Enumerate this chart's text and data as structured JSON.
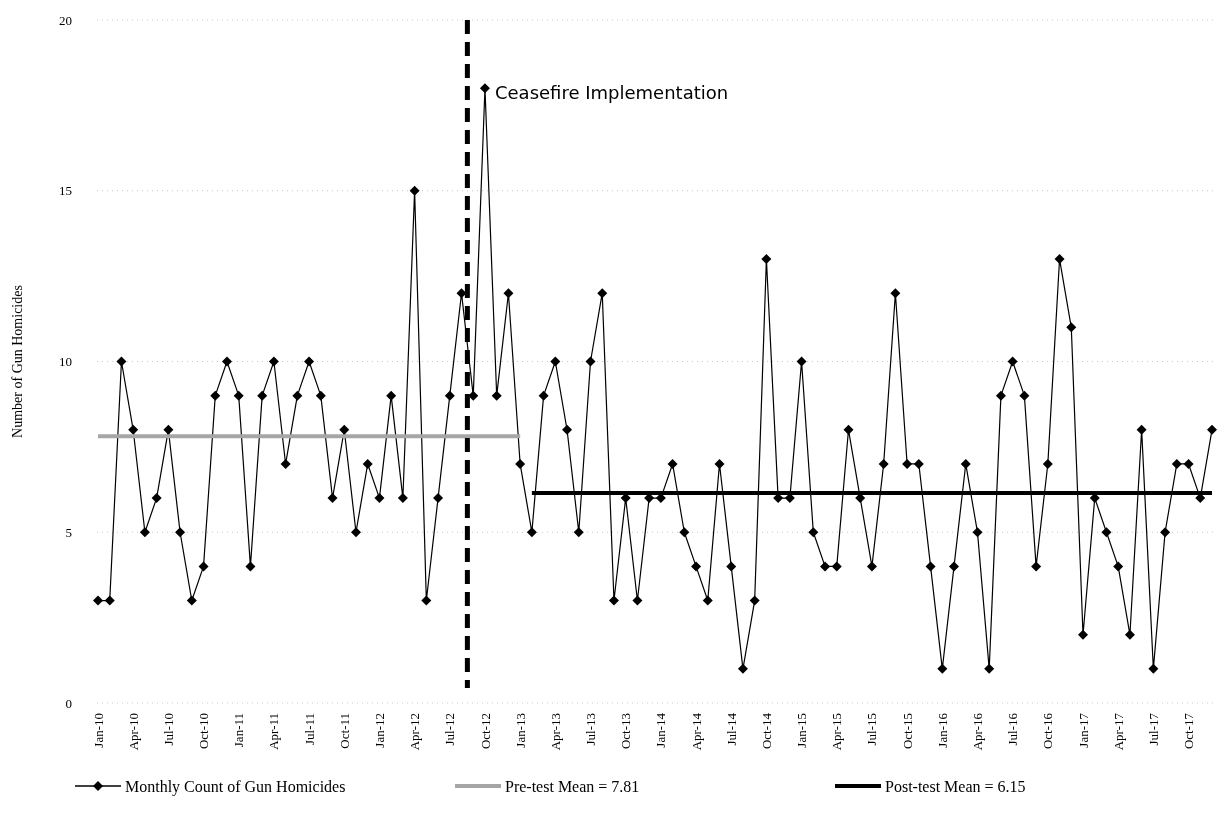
{
  "chart_data": {
    "type": "line",
    "ylabel": "Number of Gun Homicides",
    "categories": [
      "Jan-10",
      null,
      null,
      "Apr-10",
      null,
      null,
      "Jul-10",
      null,
      null,
      "Oct-10",
      null,
      null,
      "Jan-11",
      null,
      null,
      "Apr-11",
      null,
      null,
      "Jul-11",
      null,
      null,
      "Oct-11",
      null,
      null,
      "Jan-12",
      null,
      null,
      "Apr-12",
      null,
      null,
      "Jul-12",
      null,
      null,
      "Oct-12",
      null,
      null,
      "Jan-13",
      null,
      null,
      "Apr-13",
      null,
      null,
      "Jul-13",
      null,
      null,
      "Oct-13",
      null,
      null,
      "Jan-14",
      null,
      null,
      "Apr-14",
      null,
      null,
      "Jul-14",
      null,
      null,
      "Oct-14",
      null,
      null,
      "Jan-15",
      null,
      null,
      "Apr-15",
      null,
      null,
      "Jul-15",
      null,
      null,
      "Oct-15",
      null,
      null,
      "Jan-16",
      null,
      null,
      "Apr-16",
      null,
      null,
      "Jul-16",
      null,
      null,
      "Oct-16",
      null,
      null,
      "Jan-17",
      null,
      null,
      "Apr-17",
      null,
      null,
      "Jul-17",
      null,
      null,
      "Oct-17",
      null,
      null
    ],
    "series": [
      {
        "name": "Monthly Count of Gun Homicides",
        "color": "#000000",
        "marker": "diamond",
        "values": [
          3,
          3,
          10,
          8,
          5,
          6,
          8,
          5,
          3,
          4,
          9,
          10,
          9,
          4,
          9,
          10,
          7,
          9,
          10,
          9,
          6,
          8,
          5,
          7,
          6,
          9,
          6,
          15,
          3,
          6,
          9,
          12,
          9,
          18,
          9,
          12,
          7,
          5,
          9,
          10,
          8,
          5,
          10,
          12,
          3,
          6,
          3,
          6,
          6,
          7,
          5,
          4,
          3,
          7,
          4,
          1,
          3,
          13,
          6,
          6,
          10,
          5,
          4,
          4,
          8,
          6,
          4,
          7,
          12,
          7,
          7,
          4,
          1,
          4,
          7,
          5,
          1,
          9,
          10,
          9,
          4,
          7,
          13,
          11,
          2,
          6,
          5,
          4,
          2,
          8,
          1,
          5,
          7,
          7,
          6,
          8
        ]
      },
      {
        "name": "Pre-test Mean = 7.81",
        "color": "#a6a6a6",
        "marker": "none",
        "values": [
          7.81,
          7.81,
          7.81,
          7.81,
          7.81,
          7.81,
          7.81,
          7.81,
          7.81,
          7.81,
          7.81,
          7.81,
          7.81,
          7.81,
          7.81,
          7.81,
          7.81,
          7.81,
          7.81,
          7.81,
          7.81,
          7.81,
          7.81,
          7.81,
          7.81,
          7.81,
          7.81,
          7.81,
          7.81,
          7.81,
          7.81,
          7.81,
          7.81,
          7.81,
          7.81,
          7.81,
          7.81,
          null,
          null,
          null,
          null,
          null,
          null,
          null,
          null,
          null,
          null,
          null,
          null,
          null,
          null,
          null,
          null,
          null,
          null,
          null,
          null,
          null,
          null,
          null,
          null,
          null,
          null,
          null,
          null,
          null,
          null,
          null,
          null,
          null,
          null,
          null,
          null,
          null,
          null,
          null,
          null,
          null,
          null,
          null,
          null,
          null,
          null,
          null,
          null,
          null,
          null,
          null,
          null,
          null,
          null,
          null,
          null,
          null,
          null,
          null
        ]
      },
      {
        "name": "Post-test Mean = 6.15",
        "color": "#000000",
        "marker": "none",
        "values": [
          null,
          null,
          null,
          null,
          null,
          null,
          null,
          null,
          null,
          null,
          null,
          null,
          null,
          null,
          null,
          null,
          null,
          null,
          null,
          null,
          null,
          null,
          null,
          null,
          null,
          null,
          null,
          null,
          null,
          null,
          null,
          null,
          null,
          null,
          null,
          null,
          null,
          6.15,
          6.15,
          6.15,
          6.15,
          6.15,
          6.15,
          6.15,
          6.15,
          6.15,
          6.15,
          6.15,
          6.15,
          6.15,
          6.15,
          6.15,
          6.15,
          6.15,
          6.15,
          6.15,
          6.15,
          6.15,
          6.15,
          6.15,
          6.15,
          6.15,
          6.15,
          6.15,
          6.15,
          6.15,
          6.15,
          6.15,
          6.15,
          6.15,
          6.15,
          6.15,
          6.15,
          6.15,
          6.15,
          6.15,
          6.15,
          6.15,
          6.15,
          6.15,
          6.15,
          6.15,
          6.15,
          6.15,
          6.15,
          6.15,
          6.15,
          6.15,
          6.15,
          6.15,
          6.15,
          6.15,
          6.15,
          6.15,
          6.15,
          6.15
        ]
      }
    ],
    "ylim": [
      0,
      20
    ],
    "yticks": [
      0,
      5,
      10,
      15,
      20
    ],
    "grid": "y",
    "legend": "bottom",
    "line_style": "solid",
    "annotations": [
      {
        "text": "Ceasefire Implementation",
        "x": "Oct-12",
        "y": 18
      }
    ]
  }
}
